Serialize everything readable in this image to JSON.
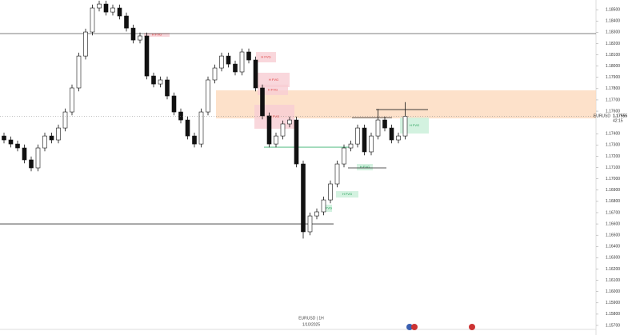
{
  "chart_data": {
    "type": "candlestick",
    "symbol": "EURUSD",
    "subtitle": "EURUSD | 1H",
    "date": "1/10/2025",
    "countdown": "42:15",
    "last_price": {
      "value": 1.17555,
      "label": "1.17555"
    },
    "ylim": [
      1.15615,
      1.18586
    ],
    "yticks": [
      {
        "value": 1.185,
        "label": "1.18500"
      },
      {
        "value": 1.184,
        "label": "1.18400"
      },
      {
        "value": 1.183,
        "label": "1.18300"
      },
      {
        "value": 1.182,
        "label": "1.18200"
      },
      {
        "value": 1.181,
        "label": "1.18100"
      },
      {
        "value": 1.18,
        "label": "1.18000"
      },
      {
        "value": 1.179,
        "label": "1.17900"
      },
      {
        "value": 1.178,
        "label": "1.17800"
      },
      {
        "value": 1.177,
        "label": "1.17700"
      },
      {
        "value": 1.176,
        "label": "1.17600"
      },
      {
        "value": 1.174,
        "label": "1.17400"
      },
      {
        "value": 1.173,
        "label": "1.17300"
      },
      {
        "value": 1.172,
        "label": "1.17200"
      },
      {
        "value": 1.171,
        "label": "1.17100"
      },
      {
        "value": 1.17,
        "label": "1.17000"
      },
      {
        "value": 1.169,
        "label": "1.16900"
      },
      {
        "value": 1.168,
        "label": "1.16800"
      },
      {
        "value": 1.167,
        "label": "1.16700"
      },
      {
        "value": 1.166,
        "label": "1.16600"
      },
      {
        "value": 1.165,
        "label": "1.16500"
      },
      {
        "value": 1.164,
        "label": "1.16400"
      },
      {
        "value": 1.163,
        "label": "1.16300"
      },
      {
        "value": 1.162,
        "label": "1.16200"
      },
      {
        "value": 1.161,
        "label": "1.16100"
      },
      {
        "value": 1.16,
        "label": "1.16000"
      },
      {
        "value": 1.159,
        "label": "1.15900"
      },
      {
        "value": 1.158,
        "label": "1.15800"
      },
      {
        "value": 1.157,
        "label": "1.15700"
      }
    ],
    "open": [
      1.1738,
      1.17345,
      1.17309,
      1.17274,
      1.17168,
      1.17097,
      1.17274,
      1.1738,
      1.17345,
      1.17451,
      1.17593,
      1.17806,
      1.18089,
      1.18302,
      1.18515,
      1.1855,
      1.18479,
      1.18515,
      1.18444,
      1.18337,
      1.18231,
      1.18267,
      1.17912,
      1.17841,
      1.17877,
      1.17735,
      1.17593,
      1.17522,
      1.1738,
      1.17309,
      1.17593,
      1.17877,
      1.17983,
      1.18089,
      1.18018,
      1.17948,
      1.18125,
      1.18054,
      1.17806,
      1.17558,
      1.17309,
      1.1738,
      1.17487,
      1.17522,
      1.17132,
      1.1653,
      1.16671,
      1.16707,
      1.16813,
      1.16955,
      1.17132,
      1.17274,
      1.17309,
      1.17451,
      1.17239,
      1.1738,
      1.17522,
      1.17451,
      1.17345,
      1.1738
    ],
    "high": [
      1.1741,
      1.17375,
      1.17339,
      1.17304,
      1.17198,
      1.17304,
      1.1741,
      1.1741,
      1.17481,
      1.17623,
      1.17836,
      1.18119,
      1.18332,
      1.18545,
      1.1858,
      1.1858,
      1.18545,
      1.18545,
      1.18474,
      1.18367,
      1.18297,
      1.18297,
      1.17942,
      1.17907,
      1.17907,
      1.17765,
      1.17623,
      1.17552,
      1.1741,
      1.17623,
      1.17907,
      1.18013,
      1.18119,
      1.18119,
      1.18048,
      1.18155,
      1.18155,
      1.18084,
      1.17836,
      1.17588,
      1.1741,
      1.17517,
      1.17552,
      1.17552,
      1.17162,
      1.16701,
      1.16737,
      1.16843,
      1.16985,
      1.17162,
      1.17304,
      1.17339,
      1.17481,
      1.17481,
      1.1741,
      1.1762,
      1.17552,
      1.17481,
      1.1741,
      1.1768
    ],
    "low": [
      1.17315,
      1.17279,
      1.17244,
      1.17138,
      1.17067,
      1.17067,
      1.17244,
      1.17315,
      1.17315,
      1.17421,
      1.17563,
      1.17776,
      1.18059,
      1.18272,
      1.18485,
      1.18449,
      1.18449,
      1.18414,
      1.18307,
      1.18201,
      1.18201,
      1.17882,
      1.17811,
      1.17811,
      1.17705,
      1.17563,
      1.17492,
      1.1735,
      1.17279,
      1.17279,
      1.17563,
      1.17847,
      1.17953,
      1.17988,
      1.17918,
      1.17918,
      1.18024,
      1.17776,
      1.17528,
      1.17279,
      1.17279,
      1.1735,
      1.17457,
      1.17102,
      1.1647,
      1.165,
      1.16641,
      1.16677,
      1.16783,
      1.16925,
      1.17102,
      1.17244,
      1.17279,
      1.17209,
      1.17209,
      1.1735,
      1.17421,
      1.17315,
      1.17315,
      1.1735
    ],
    "close": [
      1.17345,
      1.17309,
      1.17274,
      1.17168,
      1.17097,
      1.17274,
      1.1738,
      1.17345,
      1.17451,
      1.17593,
      1.17806,
      1.18089,
      1.18302,
      1.18515,
      1.1855,
      1.18479,
      1.18515,
      1.18444,
      1.18337,
      1.18231,
      1.18267,
      1.17912,
      1.17841,
      1.17877,
      1.17735,
      1.17593,
      1.17522,
      1.1738,
      1.17309,
      1.17593,
      1.17877,
      1.17983,
      1.18089,
      1.18018,
      1.17948,
      1.18125,
      1.18054,
      1.17806,
      1.17558,
      1.17309,
      1.1738,
      1.17487,
      1.17522,
      1.17132,
      1.1653,
      1.16671,
      1.16707,
      1.16813,
      1.16955,
      1.17132,
      1.17274,
      1.17309,
      1.17451,
      1.17239,
      1.1738,
      1.17522,
      1.17451,
      1.17345,
      1.1738,
      1.17555
    ],
    "levels": [
      1.18288,
      1.166,
      1.17281,
      1.17543,
      1.17614,
      1.17097
    ],
    "supply_zone": [
      1.17785,
      1.17536
    ],
    "fvgs": [
      {
        "label": "H FVG",
        "top": 1.18295,
        "bottom": 1.1826,
        "kind": "bearish"
      },
      {
        "label": "H FVG",
        "top": 1.18125,
        "bottom": 1.18033,
        "kind": "bearish"
      },
      {
        "label": "H FVG",
        "top": 1.17941,
        "bottom": 1.17813,
        "kind": "bearish"
      },
      {
        "label": "H FVG",
        "top": 1.17835,
        "bottom": 1.17743,
        "kind": "bearish"
      },
      {
        "label": "H FVG",
        "top": 1.17657,
        "bottom": 1.17444,
        "kind": "bearish"
      },
      {
        "label": "H FVG",
        "top": 1.17543,
        "bottom": 1.17402,
        "kind": "bullish"
      },
      {
        "label": "H FVG",
        "top": 1.17132,
        "bottom": 1.17075,
        "kind": "bullish"
      },
      {
        "label": "H FVG",
        "top": 1.16891,
        "bottom": 1.16834,
        "kind": "bullish"
      },
      {
        "label": "H FVG",
        "top": 1.16771,
        "bottom": 1.16707,
        "kind": "bullish"
      }
    ]
  }
}
